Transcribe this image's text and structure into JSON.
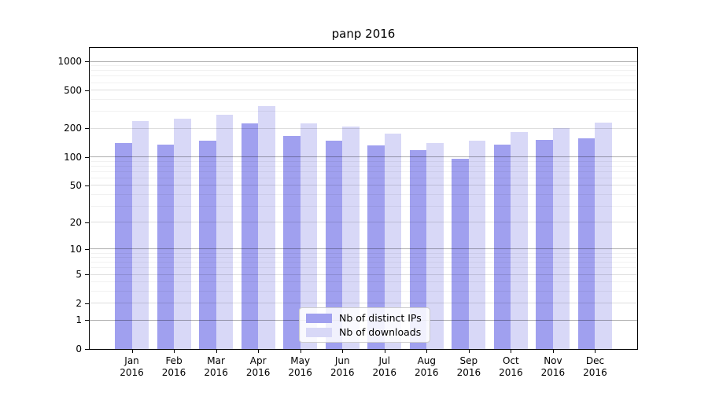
{
  "figure": {
    "background": "#ffffff"
  },
  "chart_data": {
    "type": "bar",
    "title": "panp 2016",
    "categories": [
      "Jan",
      "Feb",
      "Mar",
      "Apr",
      "May",
      "Jun",
      "Jul",
      "Aug",
      "Sep",
      "Oct",
      "Nov",
      "Dec"
    ],
    "category_year": "2016",
    "series": [
      {
        "name": "Nb of distinct IPs",
        "color": "#a0a0ef",
        "values": [
          140,
          134,
          149,
          223,
          167,
          147,
          131,
          117,
          95,
          134,
          150,
          158
        ]
      },
      {
        "name": "Nb of downloads",
        "color": "#d8d8f7",
        "values": [
          237,
          250,
          276,
          343,
          223,
          209,
          175,
          139,
          147,
          181,
          199,
          227
        ]
      }
    ],
    "xlabel": "",
    "ylabel": "",
    "yscale": "log1p",
    "ylim": [
      0,
      1380
    ],
    "yticks": [
      0,
      1,
      2,
      5,
      10,
      20,
      50,
      100,
      200,
      500,
      1000
    ],
    "grid": {
      "major_color": "rgba(0,0,0,0.32)",
      "mid_color": "rgba(0,0,0,0.13)",
      "minor_color": "rgba(0,0,0,0.055)"
    },
    "legend_position": "lower center",
    "axis_color": "#000000"
  }
}
